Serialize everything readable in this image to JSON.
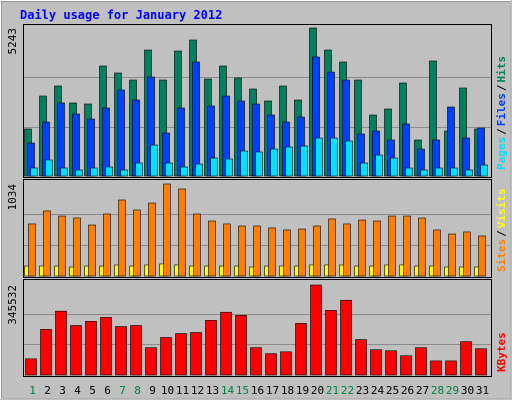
{
  "chart_data": [
    {
      "type": "bar",
      "title": "Daily usage for January 2012",
      "legend_separator": "/",
      "ylim": [
        0,
        5243
      ],
      "yticks": [
        5243
      ],
      "series": [
        {
          "name": "Pages",
          "color": "#00e0ff",
          "values": [
            283,
            567,
            283,
            213,
            283,
            319,
            213,
            460,
            1098,
            460,
            319,
            425,
            637,
            602,
            886,
            850,
            956,
            1027,
            1063,
            1346,
            1346,
            1240,
            460,
            744,
            637,
            283,
            213,
            283,
            283,
            213,
            390
          ]
        },
        {
          "name": "Files",
          "color": "#0040ff",
          "values": [
            1169,
            1913,
            2586,
            2196,
            2019,
            2409,
            3046,
            2692,
            3507,
            1523,
            2409,
            4038,
            2480,
            2834,
            2657,
            2550,
            2161,
            1913,
            2090,
            4215,
            3684,
            3400,
            1488,
            1594,
            1275,
            1842,
            956,
            1275,
            2444,
            1346,
            1700
          ]
        },
        {
          "name": "Hits",
          "color": "#00805c",
          "values": [
            1665,
            2834,
            3188,
            2586,
            2550,
            3897,
            3649,
            3400,
            4463,
            3400,
            4428,
            4818,
            3436,
            3897,
            3472,
            3082,
            2657,
            3188,
            2692,
            5243,
            4463,
            4038,
            3400,
            2161,
            2373,
            3294,
            1275,
            4074,
            1594,
            3117,
            1665
          ]
        }
      ]
    },
    {
      "type": "bar",
      "legend_separator": "/",
      "ylim": [
        0,
        1034
      ],
      "yticks": [
        1034
      ],
      "series": [
        {
          "name": "Sites",
          "color": "#ff8000",
          "values": [
            585,
            731,
            674,
            652,
            573,
            697,
            854,
            742,
            820,
            1034,
            978,
            697,
            618,
            585,
            562,
            562,
            540,
            517,
            528,
            562,
            641,
            585,
            629,
            618,
            674,
            674,
            652,
            517,
            472,
            495,
            450
          ]
        },
        {
          "name": "Visits",
          "color": "#ffff00",
          "values": [
            112,
            112,
            112,
            101,
            112,
            112,
            124,
            112,
            124,
            135,
            124,
            112,
            112,
            112,
            112,
            101,
            112,
            112,
            112,
            124,
            124,
            124,
            112,
            112,
            124,
            124,
            112,
            112,
            101,
            101,
            101
          ]
        }
      ]
    },
    {
      "type": "bar",
      "ylim": [
        0,
        345532
      ],
      "yticks": [
        345532
      ],
      "series": [
        {
          "name": "KBytes",
          "color": "#ff0000",
          "values": [
            62000,
            175000,
            245000,
            190000,
            206000,
            221000,
            186000,
            190000,
            105000,
            144000,
            159000,
            163000,
            210000,
            241000,
            229000,
            105000,
            82000,
            89000,
            198000,
            345532,
            248000,
            287000,
            136000,
            97000,
            93000,
            74000,
            105000,
            54000,
            54000,
            128000,
            101000
          ]
        }
      ],
      "categories": [
        "1",
        "2",
        "3",
        "4",
        "5",
        "6",
        "7",
        "8",
        "9",
        "10",
        "11",
        "12",
        "13",
        "14",
        "15",
        "16",
        "17",
        "18",
        "19",
        "20",
        "21",
        "22",
        "23",
        "24",
        "25",
        "26",
        "27",
        "28",
        "29",
        "30",
        "31"
      ],
      "tick_label_colors": [
        "#008040",
        "#000000",
        "#000000",
        "#000000",
        "#000000",
        "#000000",
        "#008040",
        "#008040",
        "#000000",
        "#000000",
        "#000000",
        "#000000",
        "#000000",
        "#008040",
        "#008040",
        "#000000",
        "#000000",
        "#000000",
        "#000000",
        "#000000",
        "#008040",
        "#008040",
        "#000000",
        "#000000",
        "#000000",
        "#000000",
        "#000000",
        "#008040",
        "#008040",
        "#000000",
        "#000000"
      ]
    }
  ]
}
